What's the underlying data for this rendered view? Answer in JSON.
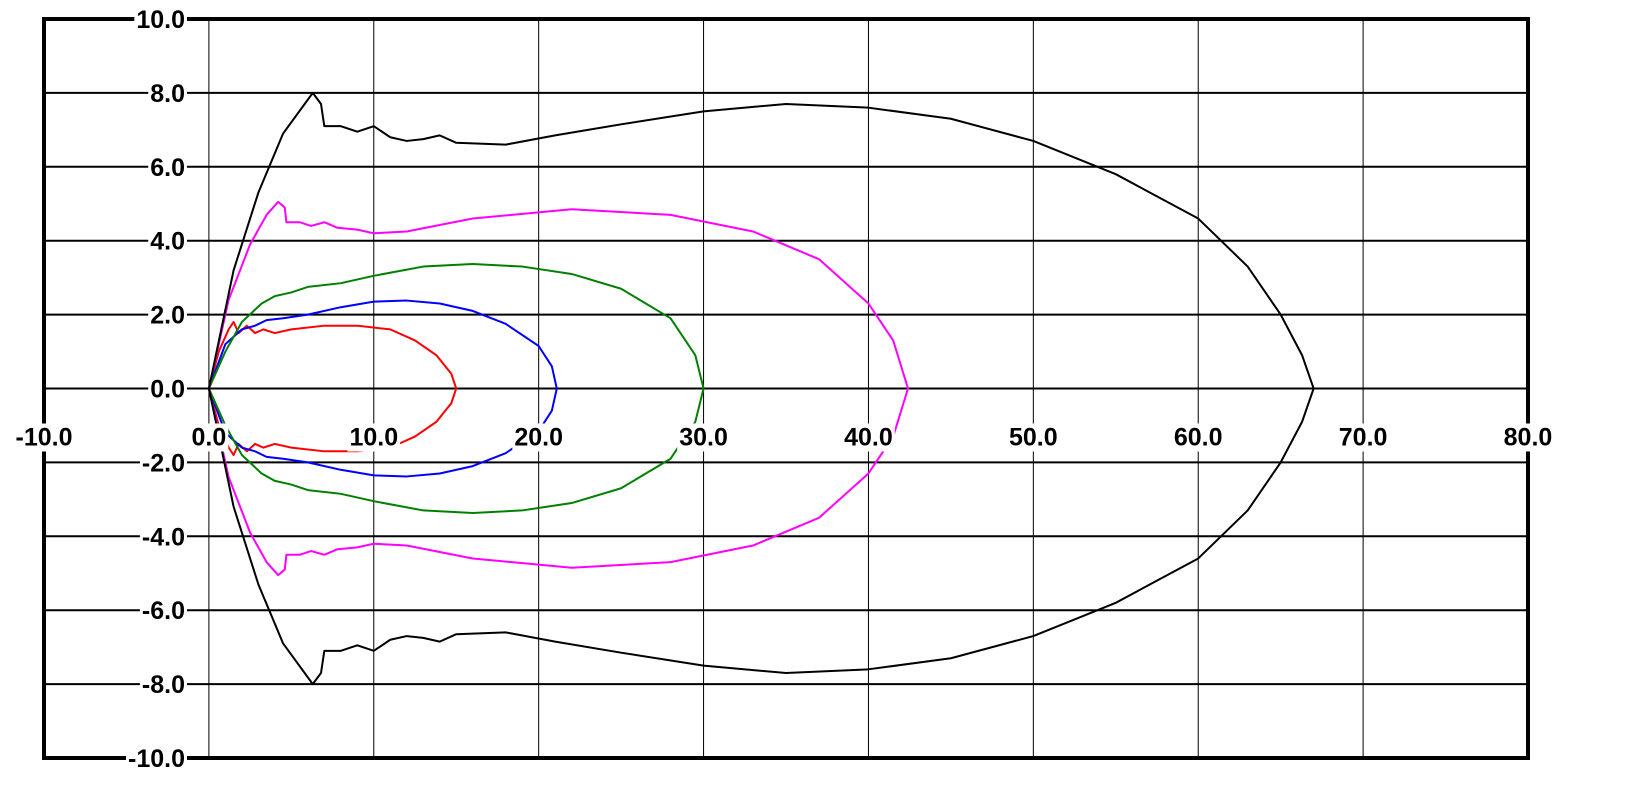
{
  "chart_data": {
    "type": "line",
    "title": "",
    "xlabel": "",
    "ylabel": "",
    "xlim": [
      -10,
      80
    ],
    "ylim": [
      -10,
      10
    ],
    "grid": true,
    "legend": "none",
    "x_ticks": [
      "-10.0",
      "0.0",
      "10.0",
      "20.0",
      "30.0",
      "40.0",
      "50.0",
      "60.0",
      "70.0",
      "80.0"
    ],
    "y_ticks": [
      "10.0",
      "8.0",
      "6.0",
      "4.0",
      "2.0",
      "0.0",
      "-2.0",
      "-4.0",
      "-6.0",
      "-8.0",
      "-10.0"
    ],
    "series": [
      {
        "color": "#ff0000",
        "symmetric_about_x_axis": true,
        "upper_points": [
          [
            0,
            0
          ],
          [
            0.6,
            1.0
          ],
          [
            1.2,
            1.6
          ],
          [
            1.5,
            1.8
          ],
          [
            1.8,
            1.5
          ],
          [
            2.3,
            1.7
          ],
          [
            2.8,
            1.5
          ],
          [
            3.3,
            1.6
          ],
          [
            4.0,
            1.5
          ],
          [
            5.0,
            1.6
          ],
          [
            7.0,
            1.7
          ],
          [
            9.0,
            1.7
          ],
          [
            11.0,
            1.6
          ],
          [
            12.5,
            1.3
          ],
          [
            13.8,
            0.9
          ],
          [
            14.7,
            0.4
          ],
          [
            15.0,
            0
          ]
        ]
      },
      {
        "color": "#0000ff",
        "symmetric_about_x_axis": true,
        "upper_points": [
          [
            0,
            0
          ],
          [
            1.0,
            1.2
          ],
          [
            2.0,
            1.6
          ],
          [
            2.8,
            1.7
          ],
          [
            3.5,
            1.85
          ],
          [
            4.5,
            1.9
          ],
          [
            6.0,
            2.0
          ],
          [
            8.0,
            2.2
          ],
          [
            10.0,
            2.35
          ],
          [
            12.0,
            2.38
          ],
          [
            14.0,
            2.3
          ],
          [
            16.0,
            2.1
          ],
          [
            18.0,
            1.75
          ],
          [
            20.0,
            1.15
          ],
          [
            20.8,
            0.6
          ],
          [
            21.1,
            0
          ]
        ]
      },
      {
        "color": "#008000",
        "symmetric_about_x_axis": true,
        "upper_points": [
          [
            0,
            0
          ],
          [
            1.0,
            1.0
          ],
          [
            2.0,
            1.8
          ],
          [
            3.2,
            2.3
          ],
          [
            4.0,
            2.5
          ],
          [
            5.0,
            2.6
          ],
          [
            6.0,
            2.75
          ],
          [
            8.0,
            2.85
          ],
          [
            10.0,
            3.05
          ],
          [
            13.0,
            3.3
          ],
          [
            16.0,
            3.37
          ],
          [
            19.0,
            3.3
          ],
          [
            22.0,
            3.1
          ],
          [
            25.0,
            2.7
          ],
          [
            28.0,
            1.9
          ],
          [
            29.5,
            0.9
          ],
          [
            30.0,
            0
          ]
        ]
      },
      {
        "color": "#ff00ff",
        "symmetric_about_x_axis": true,
        "upper_points": [
          [
            0,
            0
          ],
          [
            1.2,
            2.4
          ],
          [
            2.5,
            3.9
          ],
          [
            3.5,
            4.7
          ],
          [
            4.2,
            5.05
          ],
          [
            4.6,
            4.9
          ],
          [
            4.7,
            4.5
          ],
          [
            5.5,
            4.5
          ],
          [
            6.2,
            4.4
          ],
          [
            7.0,
            4.5
          ],
          [
            7.8,
            4.35
          ],
          [
            9.0,
            4.3
          ],
          [
            10.0,
            4.2
          ],
          [
            12.0,
            4.25
          ],
          [
            16.0,
            4.6
          ],
          [
            22.0,
            4.85
          ],
          [
            28.0,
            4.7
          ],
          [
            33.0,
            4.25
          ],
          [
            37.0,
            3.5
          ],
          [
            40.0,
            2.3
          ],
          [
            41.5,
            1.3
          ],
          [
            42.4,
            0
          ]
        ]
      },
      {
        "color": "#000000",
        "symmetric_about_x_axis": true,
        "upper_points": [
          [
            0,
            0
          ],
          [
            1.5,
            3.2
          ],
          [
            3.0,
            5.3
          ],
          [
            4.5,
            6.9
          ],
          [
            6.3,
            8.0
          ],
          [
            6.8,
            7.7
          ],
          [
            7.0,
            7.1
          ],
          [
            8.0,
            7.1
          ],
          [
            9.0,
            6.95
          ],
          [
            10.0,
            7.1
          ],
          [
            11.0,
            6.8
          ],
          [
            12.0,
            6.7
          ],
          [
            13.0,
            6.75
          ],
          [
            14.0,
            6.85
          ],
          [
            15.0,
            6.65
          ],
          [
            18.0,
            6.6
          ],
          [
            21.0,
            6.85
          ],
          [
            25.0,
            7.15
          ],
          [
            30.0,
            7.5
          ],
          [
            35.0,
            7.7
          ],
          [
            40.0,
            7.6
          ],
          [
            45.0,
            7.3
          ],
          [
            50.0,
            6.7
          ],
          [
            55.0,
            5.8
          ],
          [
            60.0,
            4.6
          ],
          [
            63.0,
            3.3
          ],
          [
            65.0,
            2.0
          ],
          [
            66.3,
            0.9
          ],
          [
            67.0,
            0
          ]
        ]
      }
    ]
  }
}
